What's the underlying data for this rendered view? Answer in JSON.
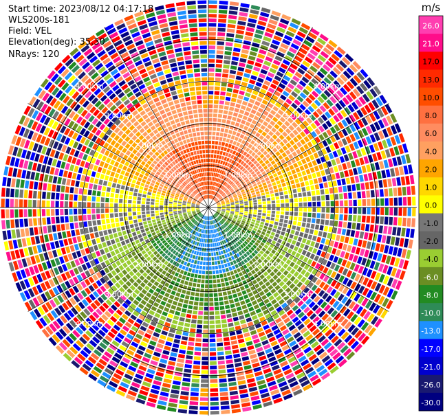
{
  "header": {
    "start_time": "Start time: 2023/08/12 04:17:18",
    "instrument": "WLS200s-181",
    "field": "Field: VEL",
    "elevation": "Elevation(deg): 35.30",
    "nrays": "NRays: 120"
  },
  "chart_data": {
    "type": "heatmap",
    "projection": "polar-ppi",
    "n_rays": 120,
    "range_rings_km": [
      1.0,
      2.0,
      3.0,
      4.0
    ],
    "ring_labels": [
      "1.00km",
      "2.00km",
      "3.00km",
      "4.00km"
    ],
    "max_range_km": 4.95,
    "spokes_deg": [
      0,
      30,
      60,
      90,
      120,
      150,
      180,
      210,
      240,
      270,
      300,
      330
    ],
    "description_zones": {
      "north_near": "positive velocity 8 to 13 m/s",
      "south_near": "negative velocity -4 to -8 m/s",
      "east_west_near": "near zero",
      "far_range": "noise, all classes"
    },
    "colorbar": {
      "unit": "m/s",
      "vmin": -30.0,
      "vmax": 30.0,
      "tick_labels": [
        "26.0",
        "21.0",
        "17.0",
        "13.0",
        "10.0",
        "8.0",
        "6.0",
        "4.0",
        "2.0",
        "1.0",
        "0.0",
        "-1.0",
        "-2.0",
        "-4.0",
        "-6.0",
        "-8.0",
        "-10.0",
        "-13.0",
        "-17.0",
        "-21.0",
        "-26.0",
        "-30.0"
      ],
      "colors": [
        "#ff3eb0",
        "#ff0d8a",
        "#ff0000",
        "#ff2a00",
        "#ff4d00",
        "#ff7040",
        "#ff8c60",
        "#ffa060",
        "#ffa500",
        "#ffd700",
        "#ffff00",
        "#777777",
        "#666666",
        "#9acd32",
        "#6b8e23",
        "#228b22",
        "#2e8b57",
        "#1e90ff",
        "#0000ff",
        "#0000cd",
        "#191970",
        "#000080"
      ]
    }
  }
}
